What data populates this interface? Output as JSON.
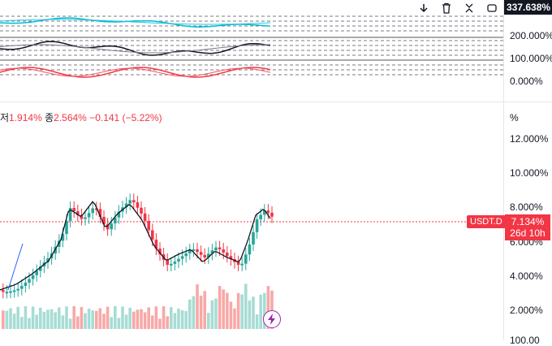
{
  "toolbar": {
    "icons": [
      "arrow-down-icon",
      "trash-icon",
      "collapse-icon",
      "maximize-icon"
    ]
  },
  "upper_scale": {
    "price_label": "337.638%",
    "ticks": [
      "200.000%",
      "100.000%",
      "0.000%"
    ]
  },
  "legend": {
    "low_label": "저",
    "low_value": "1.914%",
    "close_label": "종",
    "close_value": "2.564%",
    "change": "−0.141 (−5.22%)"
  },
  "lower_scale": {
    "unit": "%",
    "ticks": [
      "12.000%",
      "10.000%",
      "8.000%",
      "6.000%",
      "4.000%",
      "2.000%"
    ],
    "bottom_partial": "100.00"
  },
  "current": {
    "symbol": "USDT.D",
    "value": "7.134%",
    "countdown": "26d 10h"
  },
  "colors": {
    "up": "#26a69a",
    "down": "#f23645",
    "cyan": "#00bcd4",
    "dark": "#131722"
  }
}
